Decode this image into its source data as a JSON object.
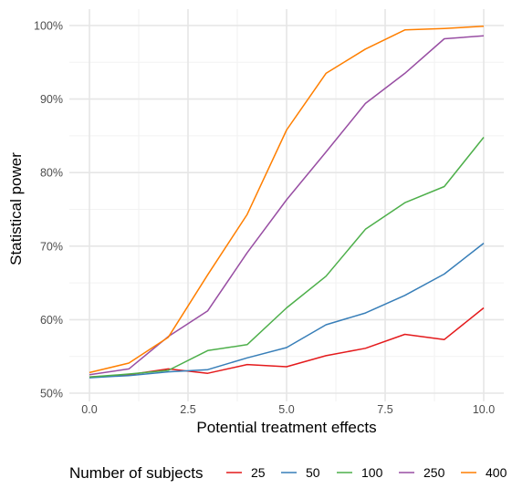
{
  "chart_data": {
    "type": "line",
    "xlabel": "Potential treatment effects",
    "ylabel": "Statistical power",
    "xlim": [
      0,
      10
    ],
    "ylim": [
      0.5,
      1.0
    ],
    "x_ticks": [
      0,
      2.5,
      5,
      7.5,
      10
    ],
    "x_tick_labels": [
      "0.0",
      "2.5",
      "5.0",
      "7.5",
      "10.0"
    ],
    "y_ticks": [
      0.5,
      0.6,
      0.7,
      0.8,
      0.9,
      1.0
    ],
    "y_tick_labels": [
      "50%",
      "60%",
      "70%",
      "80%",
      "90%",
      "100%"
    ],
    "grid": true,
    "legend": {
      "title": "Number of subjects",
      "position": "bottom"
    },
    "x": [
      0,
      1,
      2,
      3,
      4,
      5,
      6,
      7,
      8,
      9,
      10
    ],
    "series": [
      {
        "name": "25",
        "color": "#e41a1c",
        "values": [
          0.522,
          0.525,
          0.533,
          0.527,
          0.539,
          0.536,
          0.551,
          0.561,
          0.58,
          0.573,
          0.616
        ]
      },
      {
        "name": "50",
        "color": "#377eb8",
        "values": [
          0.521,
          0.524,
          0.529,
          0.532,
          0.548,
          0.562,
          0.593,
          0.609,
          0.633,
          0.662,
          0.704
        ]
      },
      {
        "name": "100",
        "color": "#4daf4a",
        "values": [
          0.522,
          0.526,
          0.531,
          0.558,
          0.566,
          0.616,
          0.659,
          0.723,
          0.759,
          0.781,
          0.848
        ]
      },
      {
        "name": "250",
        "color": "#984ea3",
        "values": [
          0.525,
          0.533,
          0.577,
          0.612,
          0.691,
          0.763,
          0.828,
          0.894,
          0.935,
          0.982,
          0.986
        ]
      },
      {
        "name": "400",
        "color": "#ff7f00",
        "values": [
          0.528,
          0.541,
          0.576,
          0.661,
          0.743,
          0.858,
          0.935,
          0.968,
          0.994,
          0.996,
          0.999
        ]
      }
    ]
  }
}
